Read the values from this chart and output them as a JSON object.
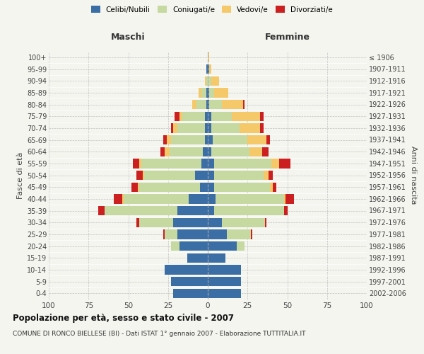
{
  "age_groups": [
    "0-4",
    "5-9",
    "10-14",
    "15-19",
    "20-24",
    "25-29",
    "30-34",
    "35-39",
    "40-44",
    "45-49",
    "50-54",
    "55-59",
    "60-64",
    "65-69",
    "70-74",
    "75-79",
    "80-84",
    "85-89",
    "90-94",
    "95-99",
    "100+"
  ],
  "birth_years": [
    "2002-2006",
    "1997-2001",
    "1992-1996",
    "1987-1991",
    "1982-1986",
    "1977-1981",
    "1972-1976",
    "1967-1971",
    "1962-1966",
    "1957-1961",
    "1952-1956",
    "1947-1951",
    "1942-1946",
    "1937-1941",
    "1932-1936",
    "1927-1931",
    "1922-1926",
    "1917-1921",
    "1912-1916",
    "1907-1911",
    "≤ 1906"
  ],
  "male": {
    "celibi": [
      22,
      23,
      27,
      13,
      18,
      19,
      22,
      19,
      12,
      5,
      8,
      4,
      3,
      2,
      2,
      2,
      1,
      1,
      0,
      1,
      0
    ],
    "coniugati": [
      0,
      0,
      0,
      0,
      5,
      8,
      21,
      46,
      41,
      38,
      32,
      38,
      21,
      21,
      17,
      14,
      6,
      3,
      1,
      0,
      0
    ],
    "vedovi": [
      0,
      0,
      0,
      0,
      0,
      0,
      0,
      0,
      1,
      1,
      1,
      1,
      3,
      3,
      3,
      2,
      3,
      2,
      1,
      0,
      0
    ],
    "divorziati": [
      0,
      0,
      0,
      0,
      0,
      1,
      2,
      4,
      5,
      4,
      4,
      4,
      3,
      2,
      1,
      3,
      0,
      0,
      0,
      0,
      0
    ]
  },
  "female": {
    "nubili": [
      21,
      21,
      21,
      11,
      18,
      12,
      9,
      4,
      5,
      4,
      4,
      4,
      2,
      3,
      2,
      2,
      1,
      1,
      0,
      1,
      0
    ],
    "coniugate": [
      0,
      0,
      0,
      0,
      5,
      15,
      27,
      44,
      43,
      35,
      31,
      36,
      24,
      22,
      18,
      13,
      8,
      3,
      2,
      0,
      0
    ],
    "vedove": [
      0,
      0,
      0,
      0,
      0,
      0,
      0,
      0,
      1,
      2,
      3,
      5,
      8,
      12,
      13,
      18,
      13,
      9,
      5,
      1,
      1
    ],
    "divorziate": [
      0,
      0,
      0,
      0,
      0,
      1,
      1,
      2,
      5,
      2,
      3,
      7,
      4,
      2,
      2,
      2,
      1,
      0,
      0,
      0,
      0
    ]
  },
  "colors": {
    "celibi": "#3a6ea5",
    "coniugati": "#c5d9a0",
    "vedovi": "#f5c96a",
    "divorziati": "#cc2020"
  },
  "xlim": 100,
  "title": "Popolazione per età, sesso e stato civile - 2007",
  "subtitle": "COMUNE DI RONCO BIELLESE (BI) - Dati ISTAT 1° gennaio 2007 - Elaborazione TUTTITALIA.IT",
  "ylabel_left": "Fasce di età",
  "ylabel_right": "Anni di nascita",
  "xlabel_left": "Maschi",
  "xlabel_right": "Femmine"
}
